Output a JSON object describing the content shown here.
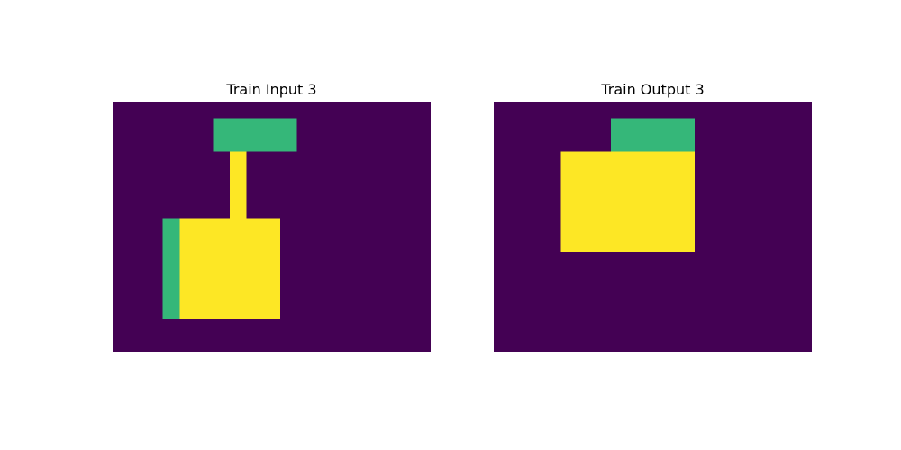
{
  "colors": {
    "0": "#440154",
    "3": "#35b779",
    "4": "#fde725"
  },
  "panels": [
    {
      "title": "Train Input 3",
      "rows": 15,
      "cols": 19,
      "grid": [
        "0000000000000000000",
        "0000003333300000000",
        "0000003333300000000",
        "0000000400000000000",
        "0000000400000000000",
        "0000000400000000000",
        "0000000400000000000",
        "0003444444000000000",
        "0003444444000000000",
        "0003444444000000000",
        "0003444444000000000",
        "0003444444000000000",
        "0003444444000000000",
        "0000000000000000000",
        "0000000000000000000"
      ]
    },
    {
      "title": "Train Output 3",
      "rows": 15,
      "cols": 19,
      "grid": [
        "0000000000000000000",
        "0000000333330000000",
        "0000000333330000000",
        "0000444444440000000",
        "0000444444440000000",
        "0000444444440000000",
        "0000444444440000000",
        "0000444444440000000",
        "0000444444440000000",
        "0000000000000000000",
        "0000000000000000000",
        "0000000000000000000",
        "0000000000000000000",
        "0000000000000000000",
        "0000000000000000000"
      ]
    }
  ]
}
